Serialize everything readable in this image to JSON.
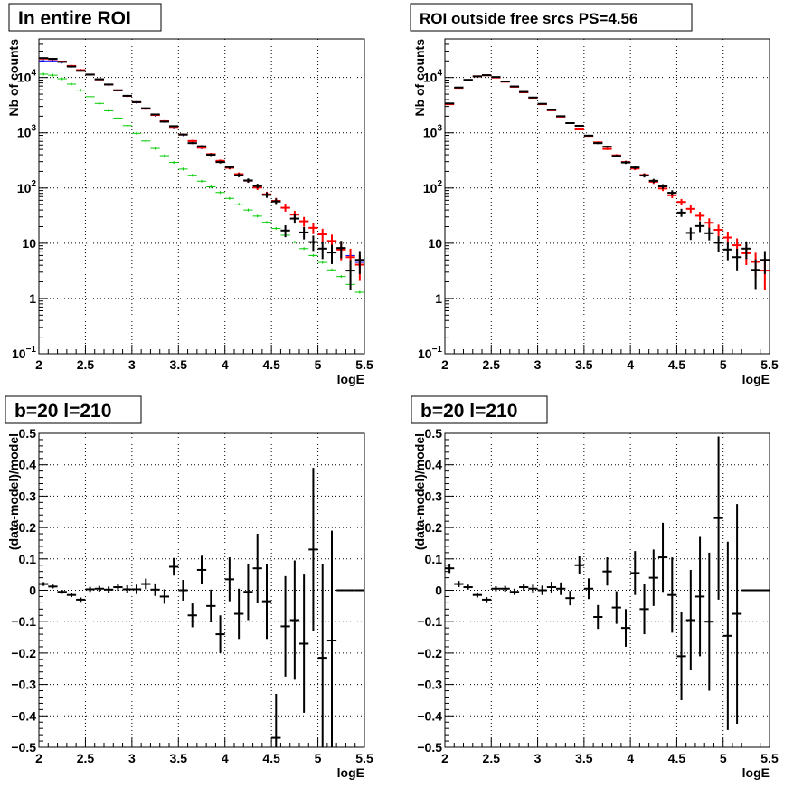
{
  "chart_data": [
    {
      "type": "scatter",
      "title": "In entire ROI",
      "xlabel": "logE",
      "ylabel": "Nb of counts",
      "xlim": [
        2,
        5.5
      ],
      "ylim": [
        0.1,
        50000
      ],
      "yscale": "log",
      "grid": true,
      "xticks": [
        "2",
        "2.5",
        "3",
        "3.5",
        "4",
        "4.5",
        "5",
        "5.5"
      ],
      "yticks": [
        {
          "value": 0.1,
          "base": "10",
          "exp": "−1"
        },
        {
          "value": 1,
          "base": "1",
          "exp": ""
        },
        {
          "value": 10,
          "base": "10",
          "exp": ""
        },
        {
          "value": 100,
          "base": "10",
          "exp": "2"
        },
        {
          "value": 1000,
          "base": "10",
          "exp": "3"
        },
        {
          "value": 10000,
          "base": "10",
          "exp": "4"
        }
      ],
      "series": [
        {
          "color": "#0000ff",
          "style": "model",
          "x": [
            2.05,
            2.15,
            2.25,
            2.35,
            2.45,
            2.55,
            2.65,
            2.75,
            2.85,
            2.95,
            3.05,
            3.15,
            3.25,
            3.35,
            3.45,
            3.55,
            3.65,
            3.75,
            3.85,
            3.95,
            4.05,
            4.15,
            4.25,
            4.35,
            4.45,
            4.55,
            4.65,
            4.75,
            4.85,
            4.95,
            5.05,
            5.15,
            5.25,
            5.35,
            5.45
          ],
          "y": [
            20000,
            20000,
            19000,
            16000,
            13500,
            11200,
            9200,
            7400,
            5800,
            4600,
            3550,
            2700,
            2080,
            1600,
            1220,
            920,
            700,
            530,
            405,
            305,
            230,
            176,
            134,
            101,
            76,
            58,
            44,
            33,
            25,
            19,
            14.5,
            11,
            8,
            6,
            4.5
          ]
        },
        {
          "color": "#00cc00",
          "style": "model",
          "x": [
            2.05,
            2.15,
            2.25,
            2.35,
            2.45,
            2.55,
            2.65,
            2.75,
            2.85,
            2.95,
            3.05,
            3.15,
            3.25,
            3.35,
            3.45,
            3.55,
            3.65,
            3.75,
            3.85,
            3.95,
            4.05,
            4.15,
            4.25,
            4.35,
            4.45,
            4.55,
            4.65,
            4.75,
            4.85,
            4.95,
            5.05,
            5.15,
            5.25,
            5.35,
            5.45
          ],
          "y": [
            11500,
            11000,
            9500,
            7600,
            5900,
            4500,
            3400,
            2500,
            1850,
            1350,
            980,
            710,
            520,
            385,
            290,
            220,
            170,
            133,
            105,
            83,
            65,
            51,
            40,
            31,
            24,
            18.5,
            14,
            10.5,
            8,
            6,
            4.5,
            3.3,
            2.5,
            1.8,
            1.3
          ]
        },
        {
          "color": "#ff0000",
          "style": "error",
          "x": [
            2.05,
            2.15,
            2.25,
            2.35,
            2.45,
            2.55,
            2.65,
            2.75,
            2.85,
            2.95,
            3.05,
            3.15,
            3.25,
            3.35,
            3.45,
            3.55,
            3.65,
            3.75,
            3.85,
            3.95,
            4.05,
            4.15,
            4.25,
            4.35,
            4.45,
            4.55,
            4.65,
            4.75,
            4.85,
            4.95,
            5.05,
            5.15,
            5.25,
            5.35,
            5.45
          ],
          "y": [
            22000,
            21500,
            19500,
            16200,
            13600,
            11300,
            9250,
            7450,
            5850,
            4650,
            3580,
            2720,
            2100,
            1620,
            1230,
            930,
            710,
            535,
            410,
            310,
            232,
            178,
            136,
            102,
            77,
            58.5,
            44,
            33,
            25,
            19,
            14.5,
            11,
            7.7,
            5.6,
            4.1
          ]
        },
        {
          "color": "#000000",
          "style": "error",
          "x": [
            2.05,
            2.15,
            2.25,
            2.35,
            2.45,
            2.55,
            2.65,
            2.75,
            2.85,
            2.95,
            3.05,
            3.15,
            3.25,
            3.35,
            3.45,
            3.55,
            3.65,
            3.75,
            3.85,
            3.95,
            4.05,
            4.15,
            4.25,
            4.35,
            4.45,
            4.55,
            4.65,
            4.75,
            4.85,
            4.95,
            5.05,
            5.15,
            5.25,
            5.35,
            5.45
          ],
          "y": [
            22500,
            21800,
            19200,
            15800,
            13200,
            11300,
            9300,
            7480,
            5880,
            4670,
            3590,
            2780,
            2150,
            1590,
            1320,
            930,
            650,
            570,
            400,
            295,
            239,
            170,
            137,
            109,
            75,
            57,
            17,
            28,
            15.7,
            10.5,
            8,
            6.8,
            8.2,
            3.2,
            5
          ]
        }
      ]
    },
    {
      "type": "scatter",
      "title": "ROI outside free srcs PS=4.56",
      "xlabel": "logE",
      "ylabel": "Nb of counts",
      "xlim": [
        2,
        5.5
      ],
      "ylim": [
        0.1,
        50000
      ],
      "yscale": "log",
      "grid": true,
      "xticks": [
        "2",
        "2.5",
        "3",
        "3.5",
        "4",
        "4.5",
        "5",
        "5.5"
      ],
      "yticks": [
        {
          "value": 0.1,
          "base": "10",
          "exp": "−1"
        },
        {
          "value": 1,
          "base": "1",
          "exp": ""
        },
        {
          "value": 10,
          "base": "10",
          "exp": ""
        },
        {
          "value": 100,
          "base": "10",
          "exp": "2"
        },
        {
          "value": 1000,
          "base": "10",
          "exp": "3"
        },
        {
          "value": 10000,
          "base": "10",
          "exp": "4"
        }
      ],
      "series": [
        {
          "color": "#ff0000",
          "style": "error",
          "x": [
            2.05,
            2.15,
            2.25,
            2.35,
            2.45,
            2.55,
            2.65,
            2.75,
            2.85,
            2.95,
            3.05,
            3.15,
            3.25,
            3.35,
            3.45,
            3.55,
            3.65,
            3.75,
            3.85,
            3.95,
            4.05,
            4.15,
            4.25,
            4.35,
            4.45,
            4.55,
            4.65,
            4.75,
            4.85,
            4.95,
            5.05,
            5.15,
            5.25,
            5.35,
            5.45
          ],
          "y": [
            3300,
            6500,
            9000,
            10500,
            11000,
            10000,
            8400,
            6800,
            5400,
            4300,
            3300,
            2550,
            1960,
            1500,
            1150,
            880,
            670,
            510,
            390,
            295,
            225,
            172,
            130,
            98,
            74,
            56,
            42,
            31.5,
            23.5,
            17.5,
            12.7,
            9.2,
            6.6,
            4.6,
            3.2
          ]
        },
        {
          "color": "#000000",
          "style": "error",
          "x": [
            2.05,
            2.15,
            2.25,
            2.35,
            2.45,
            2.55,
            2.65,
            2.75,
            2.85,
            2.95,
            3.05,
            3.15,
            3.25,
            3.35,
            3.45,
            3.55,
            3.65,
            3.75,
            3.85,
            3.95,
            4.05,
            4.15,
            4.25,
            4.35,
            4.45,
            4.55,
            4.65,
            4.75,
            4.85,
            4.95,
            5.05,
            5.15,
            5.25,
            5.35,
            5.45
          ],
          "y": [
            3400,
            6600,
            9100,
            10500,
            11000,
            10200,
            8500,
            6900,
            5500,
            4350,
            3350,
            2600,
            2000,
            1500,
            1340,
            890,
            650,
            560,
            380,
            290,
            235,
            168,
            135,
            107,
            82,
            36,
            15.4,
            20.5,
            15.2,
            10.2,
            7.7,
            5.6,
            8,
            3.3,
            5
          ]
        }
      ]
    },
    {
      "type": "scatter",
      "title": "b=20 l=210",
      "xlabel": "logE",
      "ylabel": "(data-model)/model",
      "xlim": [
        2,
        5.5
      ],
      "ylim": [
        -0.5,
        0.5
      ],
      "yscale": "linear",
      "grid": true,
      "xticks": [
        "2",
        "2.5",
        "3",
        "3.5",
        "4",
        "4.5",
        "5",
        "5.5"
      ],
      "yticks": [
        {
          "value": -0.5,
          "label": "−0.5"
        },
        {
          "value": -0.4,
          "label": "−0.4"
        },
        {
          "value": -0.3,
          "label": "−0.3"
        },
        {
          "value": -0.2,
          "label": "−0.2"
        },
        {
          "value": -0.1,
          "label": "−0.1"
        },
        {
          "value": 0,
          "label": "0"
        },
        {
          "value": 0.1,
          "label": "0.1"
        },
        {
          "value": 0.2,
          "label": "0.2"
        },
        {
          "value": 0.3,
          "label": "0.3"
        },
        {
          "value": 0.4,
          "label": "0.4"
        },
        {
          "value": 0.5,
          "label": "0.5"
        }
      ],
      "series": [
        {
          "color": "#000000",
          "style": "error",
          "x": [
            2.05,
            2.15,
            2.25,
            2.35,
            2.45,
            2.55,
            2.65,
            2.75,
            2.85,
            2.95,
            3.05,
            3.15,
            3.25,
            3.35,
            3.45,
            3.55,
            3.65,
            3.75,
            3.85,
            3.95,
            4.05,
            4.15,
            4.25,
            4.35,
            4.45,
            4.55,
            4.65,
            4.75,
            4.85,
            4.95,
            5.05,
            5.15,
            5.25,
            5.35,
            5.45
          ],
          "y": [
            0.02,
            0.012,
            -0.005,
            -0.015,
            -0.03,
            0.003,
            0.005,
            0.002,
            0.01,
            0.003,
            0.003,
            0.02,
            0.002,
            -0.02,
            0.075,
            0.0,
            -0.08,
            0.065,
            -0.05,
            -0.14,
            0.035,
            -0.075,
            -0.005,
            0.07,
            -0.035,
            -0.47,
            -0.115,
            -0.095,
            -0.17,
            0.13,
            -0.215,
            -0.16,
            0.0,
            0.0,
            0.0
          ],
          "err": [
            0.006,
            0.006,
            0.006,
            0.007,
            0.007,
            0.008,
            0.009,
            0.01,
            0.011,
            0.013,
            0.015,
            0.017,
            0.02,
            0.023,
            0.028,
            0.033,
            0.038,
            0.045,
            0.052,
            0.06,
            0.07,
            0.08,
            0.09,
            0.11,
            0.12,
            0.14,
            0.16,
            0.19,
            0.22,
            0.26,
            0.3,
            0.35,
            0,
            0,
            0
          ]
        }
      ]
    },
    {
      "type": "scatter",
      "title": "b=20 l=210",
      "xlabel": "logE",
      "ylabel": "(data-model)/model",
      "xlim": [
        2,
        5.5
      ],
      "ylim": [
        -0.5,
        0.5
      ],
      "yscale": "linear",
      "grid": true,
      "xticks": [
        "2",
        "2.5",
        "3",
        "3.5",
        "4",
        "4.5",
        "5",
        "5.5"
      ],
      "yticks": [
        {
          "value": -0.5,
          "label": "−0.5"
        },
        {
          "value": -0.4,
          "label": "−0.4"
        },
        {
          "value": -0.3,
          "label": "−0.3"
        },
        {
          "value": -0.2,
          "label": "−0.2"
        },
        {
          "value": -0.1,
          "label": "−0.1"
        },
        {
          "value": 0,
          "label": "0"
        },
        {
          "value": 0.1,
          "label": "0.1"
        },
        {
          "value": 0.2,
          "label": "0.2"
        },
        {
          "value": 0.3,
          "label": "0.3"
        },
        {
          "value": 0.4,
          "label": "0.4"
        },
        {
          "value": 0.5,
          "label": "0.5"
        }
      ],
      "series": [
        {
          "color": "#000000",
          "style": "error",
          "x": [
            2.05,
            2.15,
            2.25,
            2.35,
            2.45,
            2.55,
            2.65,
            2.75,
            2.85,
            2.95,
            3.05,
            3.15,
            3.25,
            3.35,
            3.45,
            3.55,
            3.65,
            3.75,
            3.85,
            3.95,
            4.05,
            4.15,
            4.25,
            4.35,
            4.45,
            4.55,
            4.65,
            4.75,
            4.85,
            4.95,
            5.05,
            5.15,
            5.25,
            5.35,
            5.45
          ],
          "y": [
            0.07,
            0.02,
            0.01,
            -0.015,
            -0.03,
            0.005,
            0.005,
            -0.005,
            0.01,
            0.005,
            0.0,
            0.01,
            0.005,
            -0.025,
            0.08,
            0.005,
            -0.085,
            0.06,
            -0.055,
            -0.12,
            0.055,
            -0.06,
            0.04,
            0.105,
            -0.015,
            -0.21,
            -0.095,
            -0.02,
            -0.1,
            0.23,
            -0.145,
            -0.075,
            0.0,
            0.0,
            0.0
          ],
          "err": [
            0.015,
            0.01,
            0.008,
            0.008,
            0.008,
            0.008,
            0.009,
            0.01,
            0.011,
            0.013,
            0.015,
            0.017,
            0.02,
            0.023,
            0.028,
            0.033,
            0.038,
            0.045,
            0.052,
            0.06,
            0.07,
            0.08,
            0.09,
            0.11,
            0.12,
            0.14,
            0.16,
            0.19,
            0.22,
            0.26,
            0.3,
            0.35,
            0,
            0,
            0
          ]
        }
      ]
    }
  ]
}
